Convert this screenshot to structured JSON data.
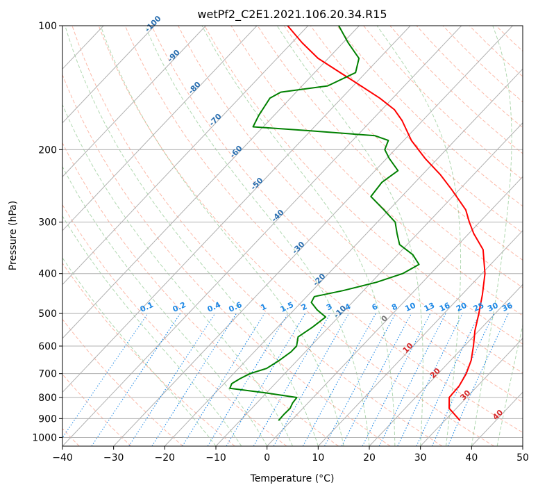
{
  "chart_data": {
    "type": "line",
    "title": "wetPf2_C2E1.2021.106.20.34.R15",
    "xlabel": "Temperature (°C)",
    "ylabel": "Pressure (hPa)",
    "xlim": [
      -40,
      50
    ],
    "ylim": [
      1050,
      100
    ],
    "y_scale": "log",
    "skew": "temperature isotherms slanted to upper-right",
    "x_ticks": [
      -40,
      -30,
      -20,
      -10,
      0,
      10,
      20,
      30,
      40,
      50
    ],
    "x_tick_labels": [
      "−40",
      "−30",
      "−20",
      "−10",
      "0",
      "10",
      "20",
      "30",
      "40",
      "50"
    ],
    "y_ticks": [
      1000,
      900,
      800,
      700,
      600,
      500,
      400,
      300,
      200,
      100
    ],
    "y_tick_labels": [
      "1000",
      "900",
      "800",
      "700",
      "600",
      "500",
      "400",
      "300",
      "200",
      "100"
    ],
    "grid": true,
    "colors": {
      "temperature": "#ff0000",
      "dewpoint": "#008000",
      "dry_adiabat": "#fa8060",
      "moist_adiabat": "#70b870",
      "mixing_ratio": "#1e88e5",
      "grid": "#b0b0b0"
    },
    "series": [
      {
        "kind": "temperature",
        "points": [
          [
            910,
            33.0
          ],
          [
            850,
            28.6
          ],
          [
            800,
            26.6
          ],
          [
            750,
            26.4
          ],
          [
            700,
            25.5
          ],
          [
            650,
            24.0
          ],
          [
            600,
            21.8
          ],
          [
            550,
            19.2
          ],
          [
            500,
            16.8
          ],
          [
            450,
            14.0
          ],
          [
            400,
            10.6
          ],
          [
            350,
            5.8
          ],
          [
            320,
            1.0
          ],
          [
            300,
            -2.0
          ],
          [
            280,
            -5.0
          ],
          [
            250,
            -11.5
          ],
          [
            230,
            -16.5
          ],
          [
            210,
            -22.5
          ],
          [
            190,
            -28.5
          ],
          [
            170,
            -34.0
          ],
          [
            160,
            -37.5
          ],
          [
            150,
            -42.5
          ],
          [
            140,
            -48.5
          ],
          [
            130,
            -55.0
          ],
          [
            120,
            -62.0
          ],
          [
            110,
            -68.0
          ],
          [
            100,
            -74.0
          ]
        ]
      },
      {
        "kind": "dewpoint",
        "points": [
          [
            910,
            -2.5
          ],
          [
            880,
            -2.6
          ],
          [
            850,
            -2.5
          ],
          [
            825,
            -3.0
          ],
          [
            800,
            -3.2
          ],
          [
            780,
            -10.0
          ],
          [
            760,
            -18.0
          ],
          [
            740,
            -18.5
          ],
          [
            720,
            -17.8
          ],
          [
            700,
            -16.8
          ],
          [
            680,
            -14.5
          ],
          [
            650,
            -13.5
          ],
          [
            620,
            -12.8
          ],
          [
            600,
            -12.8
          ],
          [
            570,
            -14.2
          ],
          [
            540,
            -13.2
          ],
          [
            510,
            -12.5
          ],
          [
            490,
            -15.5
          ],
          [
            470,
            -18.0
          ],
          [
            455,
            -18.5
          ],
          [
            440,
            -14.0
          ],
          [
            420,
            -9.0
          ],
          [
            400,
            -5.5
          ],
          [
            380,
            -4.0
          ],
          [
            360,
            -7.0
          ],
          [
            340,
            -11.5
          ],
          [
            320,
            -14.0
          ],
          [
            300,
            -16.5
          ],
          [
            280,
            -21.0
          ],
          [
            260,
            -26.0
          ],
          [
            240,
            -26.5
          ],
          [
            225,
            -25.5
          ],
          [
            210,
            -29.5
          ],
          [
            200,
            -32.0
          ],
          [
            190,
            -33.0
          ],
          [
            185,
            -36.5
          ],
          [
            180,
            -50.0
          ],
          [
            176,
            -62.0
          ],
          [
            165,
            -63.0
          ],
          [
            150,
            -64.0
          ],
          [
            145,
            -63.0
          ],
          [
            140,
            -55.0
          ],
          [
            130,
            -52.0
          ],
          [
            120,
            -54.0
          ],
          [
            110,
            -59.0
          ],
          [
            100,
            -64.0
          ]
        ]
      }
    ],
    "mixing_ratio_labels": [
      "0.1",
      "0.2",
      "0.4",
      "0.6",
      "1",
      "1.5",
      "2",
      "3",
      "4",
      "6",
      "8",
      "10",
      "13",
      "16",
      "20",
      "25",
      "30",
      "36"
    ],
    "mixing_ratio_values": [
      0.1,
      0.2,
      0.4,
      0.6,
      1,
      1.5,
      2,
      3,
      4,
      6,
      8,
      10,
      13,
      16,
      20,
      25,
      30,
      36
    ],
    "dry_adiabat_labels": [
      "-100",
      "-90",
      "-80",
      "-70",
      "-60",
      "-50",
      "-40",
      "-30",
      "-20",
      "-10",
      "0",
      "10",
      "20",
      "30",
      "40"
    ],
    "dry_adiabat_values": [
      -100,
      -90,
      -80,
      -70,
      -60,
      -50,
      -40,
      -30,
      -20,
      -10,
      0,
      10,
      20,
      30,
      40
    ]
  }
}
